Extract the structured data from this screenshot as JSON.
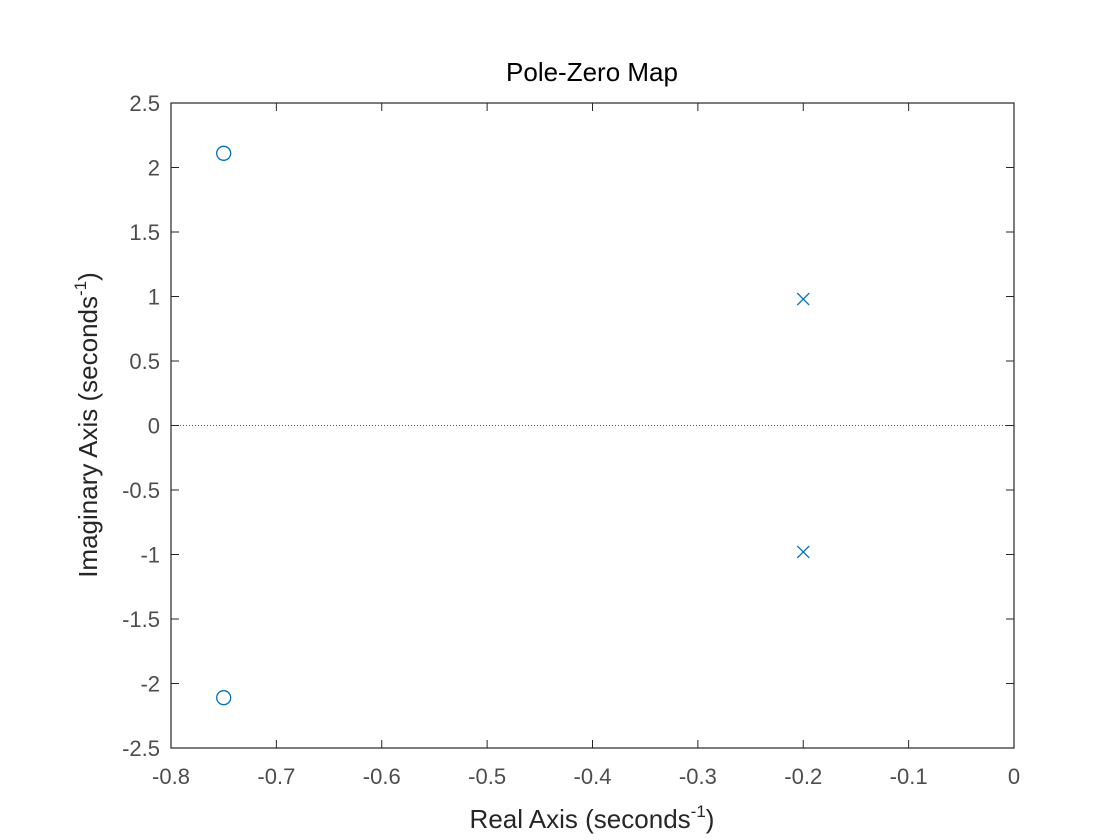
{
  "chart_data": {
    "type": "scatter",
    "title": "Pole-Zero Map",
    "xlabel": {
      "text": "Real Axis (seconds",
      "sup": "-1",
      "close": ")"
    },
    "ylabel": {
      "text": "Imaginary Axis (seconds",
      "sup": "-1",
      "close": ")"
    },
    "xlim": [
      -0.8,
      0
    ],
    "ylim": [
      -2.5,
      2.5
    ],
    "xticks": [
      -0.8,
      -0.7,
      -0.6,
      -0.5,
      -0.4,
      -0.3,
      -0.2,
      -0.1,
      0
    ],
    "xtick_labels": [
      "-0.8",
      "-0.7",
      "-0.6",
      "-0.5",
      "-0.4",
      "-0.3",
      "-0.2",
      "-0.1",
      "0"
    ],
    "yticks": [
      2.5,
      2,
      1.5,
      1,
      0.5,
      0,
      -0.5,
      -1,
      -1.5,
      -2,
      -2.5
    ],
    "ytick_labels": [
      "2.5",
      "2",
      "1.5",
      "1",
      "0.5",
      "0",
      "-0.5",
      "-1",
      "-1.5",
      "-2",
      "-2.5"
    ],
    "grid": false,
    "legend": null,
    "zero_line": {
      "y": 0,
      "style": "dotted"
    },
    "series": [
      {
        "kind": "pole",
        "marker": "x",
        "points": [
          {
            "x": -0.2,
            "y": 0.98
          },
          {
            "x": -0.2,
            "y": -0.98
          }
        ]
      },
      {
        "kind": "zero",
        "marker": "o",
        "points": [
          {
            "x": -0.75,
            "y": 2.11
          },
          {
            "x": -0.75,
            "y": -2.11
          }
        ]
      }
    ],
    "colors": {
      "marker": "#0072bd",
      "axes": "#262626",
      "tick_text": "#4d4d4d",
      "zero_line": "#555555"
    }
  }
}
